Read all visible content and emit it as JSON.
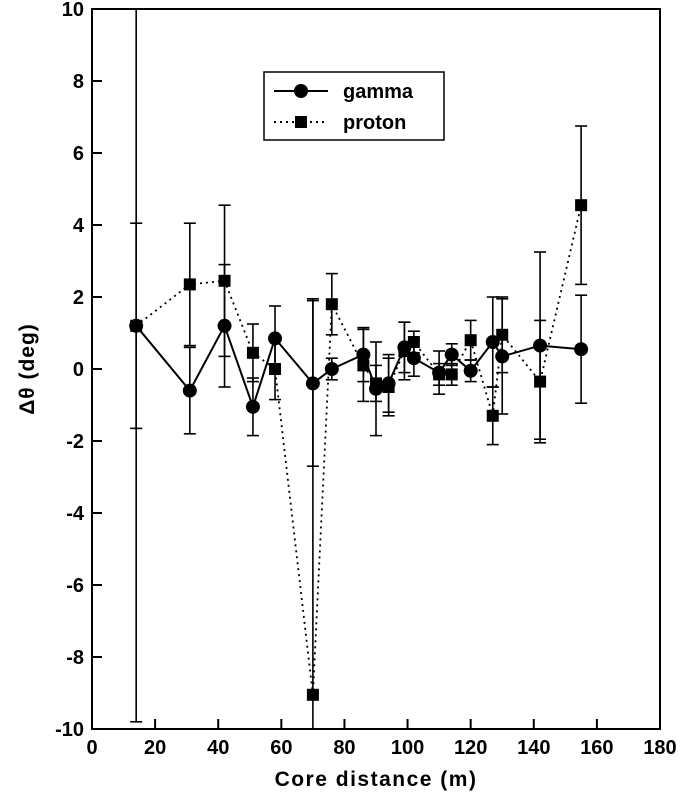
{
  "chart_data": {
    "type": "scatter",
    "title": "",
    "xlabel": "Core distance (m)",
    "ylabel": "Δθ (deg)",
    "xlim": [
      0,
      180
    ],
    "ylim": [
      -10,
      10
    ],
    "xticks": [
      "0",
      "20",
      "40",
      "60",
      "80",
      "100",
      "120",
      "140",
      "160",
      "180"
    ],
    "yticks": [
      "10",
      "8",
      "6",
      "4",
      "2",
      "0",
      "-2",
      "-4",
      "-6",
      "-8",
      "-10"
    ],
    "grid": false,
    "legend_position": "top-center",
    "series": [
      {
        "name": "gamma",
        "marker": "circle",
        "line_style": "solid",
        "color": "#000000",
        "points": [
          {
            "x": 14,
            "y": 1.2,
            "err": 11
          },
          {
            "x": 31,
            "y": -0.6,
            "err": 1.2
          },
          {
            "x": 42,
            "y": 1.2,
            "err": 1.7
          },
          {
            "x": 51,
            "y": -1.05,
            "err": 0.8
          },
          {
            "x": 58,
            "y": 0.85,
            "err": 0.9
          },
          {
            "x": 70,
            "y": -0.4,
            "err": 2.3
          },
          {
            "x": 76,
            "y": 0.0,
            "err": 0.3
          },
          {
            "x": 86,
            "y": 0.4,
            "err": 0.75
          },
          {
            "x": 90,
            "y": -0.55,
            "err": 1.3
          },
          {
            "x": 94,
            "y": -0.4,
            "err": 0.8
          },
          {
            "x": 99,
            "y": 0.6,
            "err": 0.7
          },
          {
            "x": 102,
            "y": 0.3,
            "err": 0.5
          },
          {
            "x": 110,
            "y": -0.1,
            "err": 0.6
          },
          {
            "x": 114,
            "y": 0.4,
            "err": 0.3
          },
          {
            "x": 120,
            "y": -0.05,
            "err": 0.3
          },
          {
            "x": 127,
            "y": 0.75,
            "err": 1.25
          },
          {
            "x": 130,
            "y": 0.35,
            "err": 1.6
          },
          {
            "x": 142,
            "y": 0.65,
            "err": 2.6
          },
          {
            "x": 155,
            "y": 0.55,
            "err": 1.5
          }
        ]
      },
      {
        "name": "proton",
        "marker": "square",
        "line_style": "dotted",
        "color": "#000000",
        "points": [
          {
            "x": 14,
            "y": 1.2,
            "err": 2.85
          },
          {
            "x": 31,
            "y": 2.35,
            "err": 1.7
          },
          {
            "x": 42,
            "y": 2.45,
            "err": 2.1
          },
          {
            "x": 51,
            "y": 0.45,
            "err": 0.8
          },
          {
            "x": 58,
            "y": 0.0,
            "err": 0.85
          },
          {
            "x": 70,
            "y": -9.05,
            "err": 11
          },
          {
            "x": 76,
            "y": 1.8,
            "err": 0.85
          },
          {
            "x": 86,
            "y": 0.1,
            "err": 1.0
          },
          {
            "x": 90,
            "y": -0.4,
            "err": 0.5
          },
          {
            "x": 94,
            "y": -0.5,
            "err": 0.8
          },
          {
            "x": 99,
            "y": 0.5,
            "err": 0.8
          },
          {
            "x": 102,
            "y": 0.75,
            "err": 0.3
          },
          {
            "x": 110,
            "y": -0.15,
            "err": 0.3
          },
          {
            "x": 114,
            "y": -0.15,
            "err": 0.3
          },
          {
            "x": 120,
            "y": 0.8,
            "err": 0.55
          },
          {
            "x": 127,
            "y": -1.3,
            "err": 0.8
          },
          {
            "x": 130,
            "y": 0.95,
            "err": 1.05
          },
          {
            "x": 142,
            "y": -0.35,
            "err": 1.7
          },
          {
            "x": 155,
            "y": 4.55,
            "err": 2.2
          }
        ]
      }
    ]
  }
}
